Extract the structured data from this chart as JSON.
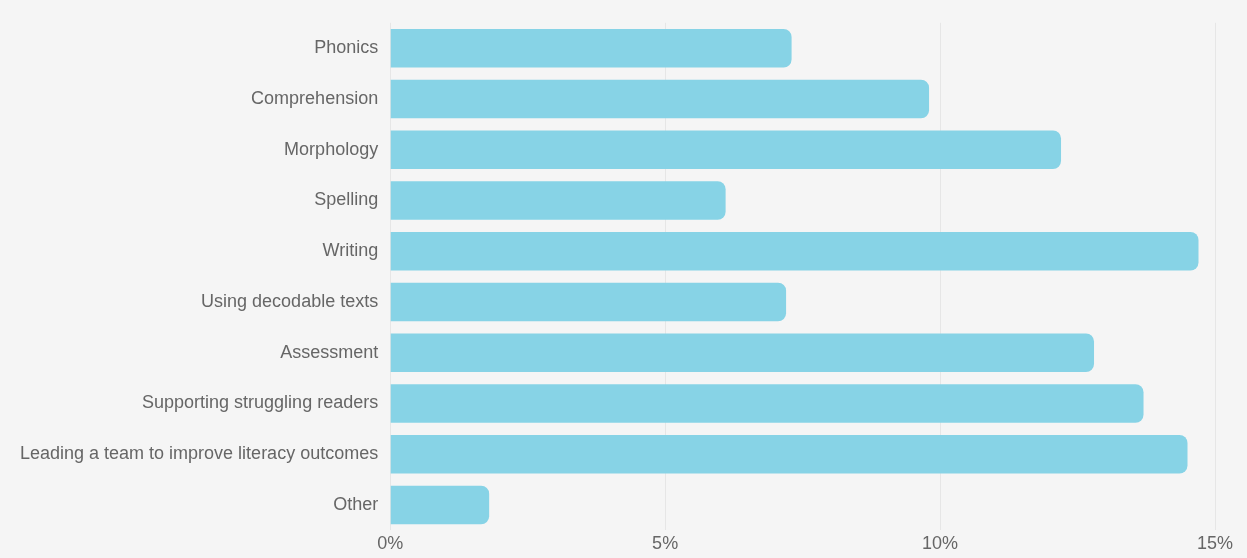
{
  "chart_data": {
    "type": "bar",
    "orientation": "horizontal",
    "categories": [
      "Phonics",
      "Comprehension",
      "Morphology",
      "Spelling",
      "Writing",
      "Using decodable texts",
      "Assessment",
      "Supporting struggling readers",
      "Leading a team to improve literacy outcomes",
      "Other"
    ],
    "values": [
      7.3,
      9.8,
      12.2,
      6.1,
      14.7,
      7.2,
      12.8,
      13.7,
      14.5,
      1.8
    ],
    "color": "#87d3e6",
    "xlim": [
      0,
      15
    ],
    "xticks": [
      {
        "value": 0,
        "label": "0%"
      },
      {
        "value": 5,
        "label": "5%"
      },
      {
        "value": 10,
        "label": "10%"
      },
      {
        "value": 15,
        "label": "15%"
      }
    ],
    "grid": "x",
    "legend": false
  }
}
